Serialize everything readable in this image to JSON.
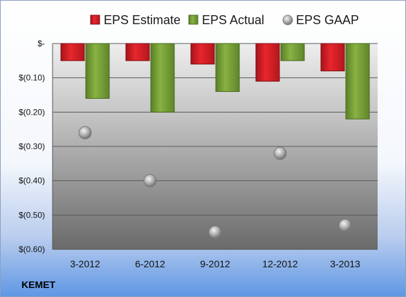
{
  "chart_data": {
    "type": "bar",
    "categories": [
      "3-2012",
      "6-2012",
      "9-2012",
      "12-2012",
      "3-2013"
    ],
    "series": [
      {
        "name": "EPS Estimate",
        "kind": "bar",
        "color": "#d9232a",
        "values": [
          -0.05,
          -0.05,
          -0.06,
          -0.11,
          -0.08
        ]
      },
      {
        "name": "EPS Actual",
        "kind": "bar",
        "color": "#7aa33a",
        "values": [
          -0.16,
          -0.2,
          -0.14,
          -0.05,
          -0.22
        ]
      },
      {
        "name": "EPS GAAP",
        "kind": "scatter",
        "color": "#a0a0a0",
        "values": [
          -0.26,
          -0.4,
          -0.55,
          -0.32,
          -0.53
        ]
      }
    ],
    "yticks": [
      {
        "value": 0,
        "label": "$-"
      },
      {
        "value": -0.1,
        "label": "$(0.10)"
      },
      {
        "value": -0.2,
        "label": "$(0.20)"
      },
      {
        "value": -0.3,
        "label": "$(0.30)"
      },
      {
        "value": -0.4,
        "label": "$(0.40)"
      },
      {
        "value": -0.5,
        "label": "$(0.50)"
      },
      {
        "value": -0.6,
        "label": "$(0.60)"
      }
    ],
    "ylim": [
      -0.6,
      0
    ],
    "grid": true,
    "legend_position": "top",
    "brand": "KEMET"
  }
}
